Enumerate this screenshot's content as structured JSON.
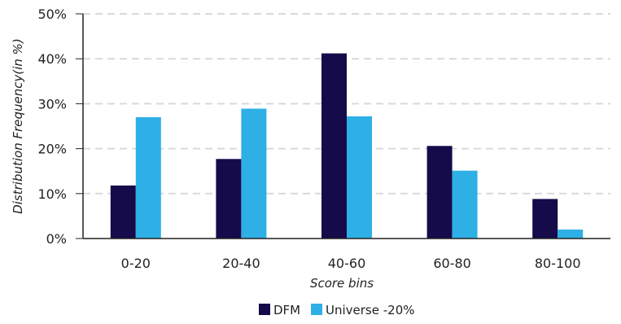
{
  "chart_data": {
    "type": "bar",
    "categories": [
      "0-20",
      "20-40",
      "40-60",
      "60-80",
      "80-100"
    ],
    "series": [
      {
        "name": "DFM",
        "values": [
          11.8,
          17.7,
          41.2,
          20.6,
          8.8
        ],
        "color": "#150a4a"
      },
      {
        "name": "Universe -20%",
        "values": [
          27.0,
          28.9,
          27.2,
          15.1,
          2.0
        ],
        "color": "#2eafe6"
      }
    ],
    "xlabel": "Score bins",
    "ylabel": "Distribution Frequency(in %)",
    "ylim": [
      0,
      50
    ],
    "yticks": [
      "0%",
      "10%",
      "20%",
      "30%",
      "40%",
      "50%"
    ],
    "ytick_values": [
      0,
      10,
      20,
      30,
      40,
      50
    ],
    "grid": "horizontal dashed",
    "legend": "bottom-center",
    "grid_color": "#d9d9d9",
    "axis_color": "#222222"
  }
}
